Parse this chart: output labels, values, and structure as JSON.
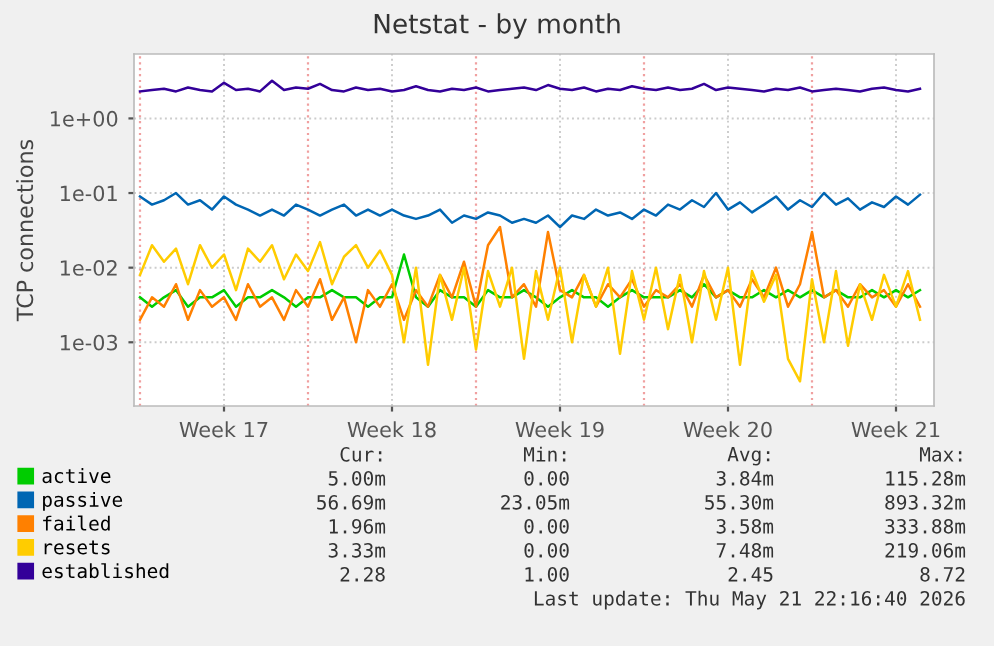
{
  "chart_data": {
    "type": "line",
    "title": "Netstat - by month",
    "ylabel": "TCP connections",
    "x": [
      "2026-04-20T00:00",
      "2026-04-20T12:00",
      "2026-04-21T00:00",
      "2026-04-21T12:00",
      "2026-04-22T00:00",
      "2026-04-22T12:00",
      "2026-04-23T00:00",
      "2026-04-23T12:00",
      "2026-04-24T00:00",
      "2026-04-24T12:00",
      "2026-04-25T00:00",
      "2026-04-25T12:00",
      "2026-04-26T00:00",
      "2026-04-26T12:00",
      "2026-04-27T00:00",
      "2026-04-27T12:00",
      "2026-04-28T00:00",
      "2026-04-28T12:00",
      "2026-04-29T00:00",
      "2026-04-29T12:00",
      "2026-04-30T00:00",
      "2026-04-30T12:00",
      "2026-05-01T00:00",
      "2026-05-01T12:00",
      "2026-05-02T00:00",
      "2026-05-02T12:00",
      "2026-05-03T00:00",
      "2026-05-03T12:00",
      "2026-05-04T00:00",
      "2026-05-04T12:00",
      "2026-05-05T00:00",
      "2026-05-05T12:00",
      "2026-05-06T00:00",
      "2026-05-06T12:00",
      "2026-05-07T00:00",
      "2026-05-07T12:00",
      "2026-05-08T00:00",
      "2026-05-08T12:00",
      "2026-05-09T00:00",
      "2026-05-09T12:00",
      "2026-05-10T00:00",
      "2026-05-10T12:00",
      "2026-05-11T00:00",
      "2026-05-11T12:00",
      "2026-05-12T00:00",
      "2026-05-12T12:00",
      "2026-05-13T00:00",
      "2026-05-13T12:00",
      "2026-05-14T00:00",
      "2026-05-14T12:00",
      "2026-05-15T00:00",
      "2026-05-15T12:00",
      "2026-05-16T00:00",
      "2026-05-16T12:00",
      "2026-05-17T00:00",
      "2026-05-17T12:00",
      "2026-05-18T00:00",
      "2026-05-18T12:00",
      "2026-05-19T00:00",
      "2026-05-19T12:00",
      "2026-05-20T00:00",
      "2026-05-20T12:00",
      "2026-05-21T00:00",
      "2026-05-21T12:00",
      "2026-05-22T00:00",
      "2026-05-22T12:00"
    ],
    "series": [
      {
        "name": "active",
        "color": "#00cc00",
        "values": [
          0.004,
          0.003,
          0.004,
          0.005,
          0.003,
          0.004,
          0.004,
          0.005,
          0.003,
          0.004,
          0.004,
          0.005,
          0.004,
          0.003,
          0.004,
          0.004,
          0.005,
          0.004,
          0.004,
          0.003,
          0.004,
          0.004,
          0.015,
          0.004,
          0.003,
          0.005,
          0.004,
          0.004,
          0.003,
          0.005,
          0.004,
          0.004,
          0.005,
          0.004,
          0.003,
          0.004,
          0.005,
          0.004,
          0.004,
          0.003,
          0.004,
          0.005,
          0.004,
          0.004,
          0.004,
          0.005,
          0.004,
          0.006,
          0.004,
          0.005,
          0.004,
          0.004,
          0.005,
          0.004,
          0.005,
          0.004,
          0.005,
          0.004,
          0.005,
          0.004,
          0.004,
          0.005,
          0.004,
          0.005,
          0.004,
          0.005
        ]
      },
      {
        "name": "passive",
        "color": "#0066b3",
        "values": [
          0.09,
          0.07,
          0.08,
          0.1,
          0.07,
          0.08,
          0.06,
          0.09,
          0.07,
          0.06,
          0.05,
          0.06,
          0.05,
          0.07,
          0.06,
          0.05,
          0.06,
          0.07,
          0.05,
          0.06,
          0.05,
          0.06,
          0.05,
          0.045,
          0.05,
          0.06,
          0.04,
          0.05,
          0.045,
          0.055,
          0.05,
          0.04,
          0.045,
          0.04,
          0.05,
          0.035,
          0.05,
          0.045,
          0.06,
          0.05,
          0.055,
          0.045,
          0.06,
          0.05,
          0.07,
          0.06,
          0.08,
          0.065,
          0.1,
          0.06,
          0.075,
          0.055,
          0.07,
          0.09,
          0.06,
          0.08,
          0.065,
          0.1,
          0.07,
          0.085,
          0.06,
          0.075,
          0.065,
          0.09,
          0.07,
          0.095
        ]
      },
      {
        "name": "failed",
        "color": "#ff8000",
        "values": [
          0.002,
          0.004,
          0.003,
          0.006,
          0.002,
          0.005,
          0.003,
          0.004,
          0.002,
          0.006,
          0.003,
          0.004,
          0.002,
          0.005,
          0.003,
          0.007,
          0.002,
          0.004,
          0.001,
          0.005,
          0.003,
          0.006,
          0.002,
          0.005,
          0.003,
          0.008,
          0.004,
          0.012,
          0.003,
          0.02,
          0.035,
          0.004,
          0.006,
          0.003,
          0.03,
          0.005,
          0.004,
          0.008,
          0.003,
          0.006,
          0.004,
          0.007,
          0.003,
          0.005,
          0.004,
          0.006,
          0.003,
          0.008,
          0.004,
          0.005,
          0.003,
          0.007,
          0.004,
          0.01,
          0.003,
          0.006,
          0.03,
          0.004,
          0.005,
          0.003,
          0.006,
          0.004,
          0.005,
          0.003,
          0.006,
          0.003
        ]
      },
      {
        "name": "resets",
        "color": "#ffcc00",
        "values": [
          0.008,
          0.02,
          0.012,
          0.018,
          0.006,
          0.02,
          0.01,
          0.015,
          0.005,
          0.018,
          0.012,
          0.02,
          0.007,
          0.015,
          0.009,
          0.022,
          0.006,
          0.014,
          0.02,
          0.01,
          0.017,
          0.008,
          0.001,
          0.01,
          0.0005,
          0.008,
          0.002,
          0.01,
          0.0008,
          0.009,
          0.003,
          0.01,
          0.0006,
          0.009,
          0.002,
          0.01,
          0.001,
          0.008,
          0.003,
          0.01,
          0.0007,
          0.009,
          0.002,
          0.01,
          0.0015,
          0.008,
          0.001,
          0.009,
          0.002,
          0.01,
          0.0005,
          0.009,
          0.0035,
          0.008,
          0.0006,
          0.0003,
          0.007,
          0.001,
          0.009,
          0.0009,
          0.006,
          0.002,
          0.008,
          0.003,
          0.009,
          0.002
        ]
      },
      {
        "name": "established",
        "color": "#330099",
        "values": [
          2.3,
          2.4,
          2.5,
          2.3,
          2.6,
          2.4,
          2.3,
          3.0,
          2.4,
          2.5,
          2.3,
          3.2,
          2.4,
          2.6,
          2.5,
          2.9,
          2.4,
          2.3,
          2.6,
          2.4,
          2.5,
          2.3,
          2.4,
          2.7,
          2.4,
          2.3,
          2.5,
          2.4,
          2.6,
          2.3,
          2.4,
          2.5,
          2.6,
          2.4,
          2.8,
          2.5,
          2.4,
          2.6,
          2.3,
          2.5,
          2.4,
          2.7,
          2.5,
          2.4,
          2.6,
          2.4,
          2.5,
          2.9,
          2.4,
          2.6,
          2.5,
          2.4,
          2.3,
          2.5,
          2.4,
          2.6,
          2.3,
          2.4,
          2.5,
          2.4,
          2.3,
          2.5,
          2.6,
          2.4,
          2.3,
          2.5
        ]
      }
    ],
    "log": "y",
    "ylim": [
      0.00014,
      7.3
    ],
    "yticks": [
      {
        "value": 1,
        "label": "1e+00"
      },
      {
        "value": 0.1,
        "label": "1e-01"
      },
      {
        "value": 0.01,
        "label": "1e-02"
      },
      {
        "value": 0.001,
        "label": "1e-03"
      }
    ],
    "xlim": [
      "2026-04-19T18:00",
      "2026-05-23T02:00"
    ],
    "xticks": [
      {
        "value": "2026-04-23T12:00",
        "label": "Week 17"
      },
      {
        "value": "2026-04-30T12:00",
        "label": "Week 18"
      },
      {
        "value": "2026-05-07T12:00",
        "label": "Week 19"
      },
      {
        "value": "2026-05-14T12:00",
        "label": "Week 20"
      },
      {
        "value": "2026-05-21T12:00",
        "label": "Week 21"
      }
    ],
    "ref_lines": [
      {
        "axis": "x",
        "value": "2026-04-20",
        "color": "#f0a0a0",
        "line_style": "dotted"
      },
      {
        "axis": "x",
        "value": "2026-04-27",
        "color": "#f0a0a0",
        "line_style": "dotted"
      },
      {
        "axis": "x",
        "value": "2026-05-04",
        "color": "#f0a0a0",
        "line_style": "dotted"
      },
      {
        "axis": "x",
        "value": "2026-05-11",
        "color": "#f0a0a0",
        "line_style": "dotted"
      },
      {
        "axis": "x",
        "value": "2026-05-18",
        "color": "#f0a0a0",
        "line_style": "dotted"
      }
    ],
    "grid": true,
    "legend": "bottom left",
    "line_style": "solid",
    "marker": "none",
    "annotations": [
      "Cur:",
      "Min:",
      "Avg:",
      "Max:",
      "5.00m",
      "0.00",
      "3.84m",
      "115.28m",
      "56.69m",
      "23.05m",
      "55.30m",
      "893.32m",
      "1.96m",
      "0.00",
      "3.58m",
      "333.88m",
      "3.33m",
      "0.00",
      "7.48m",
      "219.06m",
      "2.28",
      "1.00",
      "2.45",
      "8.72",
      "Last update: Thu May 21 22:16:40 2026"
    ]
  }
}
